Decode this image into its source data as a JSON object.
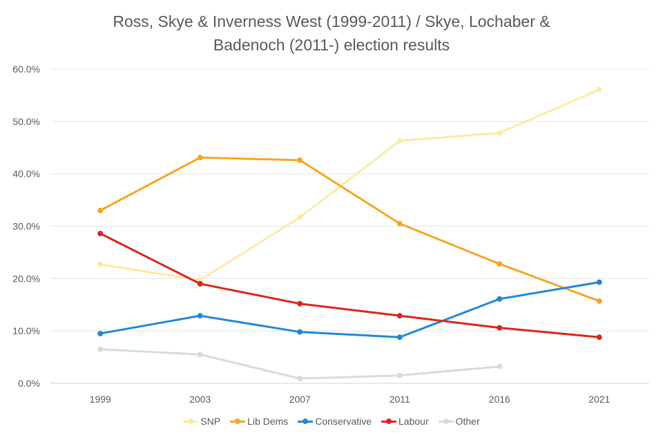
{
  "chart_data": {
    "type": "line",
    "title": "Ross, Skye & Inverness West (1999-2011) / Skye, Lochaber & Badenoch (2011-) election results",
    "title_lines": [
      "Ross, Skye & Inverness West (1999-2011) / Skye, Lochaber &",
      "Badenoch (2011-) election results"
    ],
    "categories": [
      "1999",
      "2003",
      "2007",
      "2011",
      "2016",
      "2021"
    ],
    "ylim": [
      0,
      60
    ],
    "yticks": [
      "0.0%",
      "10.0%",
      "20.0%",
      "30.0%",
      "40.0%",
      "50.0%",
      "60.0%"
    ],
    "grid": true,
    "legend": "bottom",
    "series": [
      {
        "name": "SNP",
        "color": "#FBEBA4",
        "values": [
          22.7,
          19.7,
          31.7,
          46.3,
          47.8,
          56.1
        ]
      },
      {
        "name": "Lib Dems",
        "color": "#F5A623",
        "values": [
          33.0,
          43.1,
          42.6,
          30.5,
          22.8,
          15.7
        ]
      },
      {
        "name": "Conservative",
        "color": "#1E88D8",
        "values": [
          9.5,
          12.9,
          9.8,
          8.8,
          16.1,
          19.3
        ]
      },
      {
        "name": "Labour",
        "color": "#D9261C",
        "values": [
          28.6,
          19.0,
          15.2,
          12.9,
          10.6,
          8.8
        ]
      },
      {
        "name": "Other",
        "color": "#DADADA",
        "values": [
          6.5,
          5.5,
          0.9,
          1.5,
          3.2,
          null
        ]
      }
    ]
  }
}
